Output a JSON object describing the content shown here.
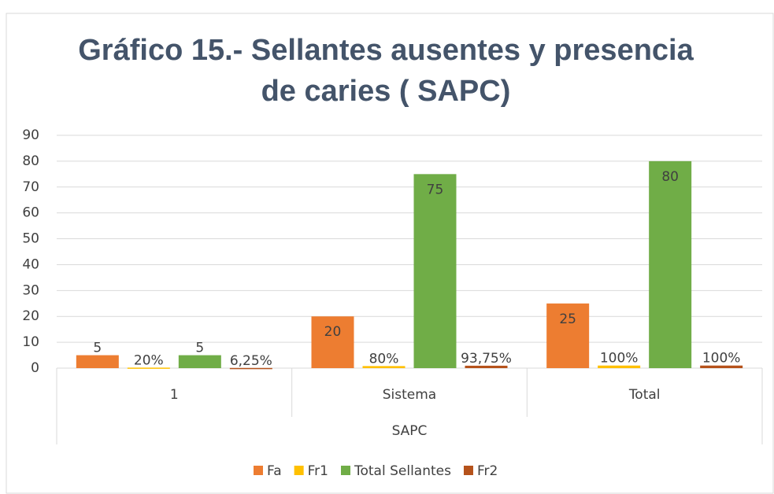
{
  "chart_data": {
    "type": "bar",
    "title": [
      "Gráfico 15.- Sellantes ausentes y presencia",
      "de caries ( SAPC)"
    ],
    "x_label": "SAPC",
    "categories": [
      "1",
      "Sistema",
      "Total"
    ],
    "series": [
      {
        "name": "Fa",
        "color": "#ed7d31",
        "values": [
          5,
          20,
          25
        ]
      },
      {
        "name": "Fr1",
        "color": "#ffc000",
        "values": [
          0.2,
          0.8,
          1
        ],
        "value_labels": [
          "20%",
          "80%",
          "100%"
        ]
      },
      {
        "name": "Total Sellantes",
        "color": "#70ad47",
        "values": [
          5,
          75,
          80
        ]
      },
      {
        "name": "Fr2",
        "color": "#b5521b",
        "values": [
          0.0625,
          0.9375,
          1
        ],
        "value_labels": [
          "6,25%",
          "93,75%",
          "100%"
        ]
      }
    ],
    "ylim": [
      0,
      90
    ],
    "yticks": [
      0,
      10,
      20,
      30,
      40,
      50,
      60,
      70,
      80,
      90
    ],
    "grid": true,
    "legend": "bottom"
  }
}
